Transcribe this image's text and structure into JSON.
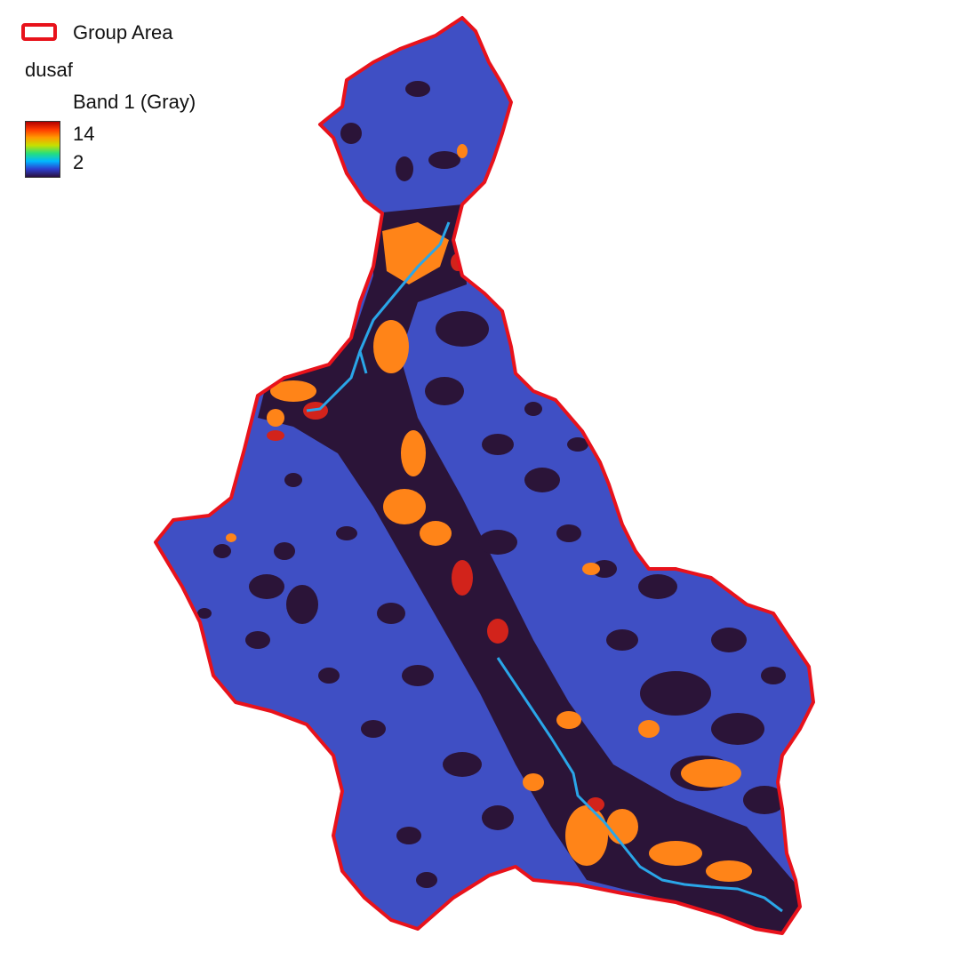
{
  "legend": {
    "group_area_label": "Group Area",
    "layer_name": "dusaf",
    "band_label": "Band 1 (Gray)",
    "ramp_max": "14",
    "ramp_min": "2",
    "outline_color": "#e8121b",
    "ramp_colors": [
      "#b30000",
      "#ff3a00",
      "#ff9a00",
      "#c6e000",
      "#28e07a",
      "#00b8ff",
      "#2d40d0",
      "#2a1040"
    ]
  },
  "map": {
    "boundary_color": "#e8121b",
    "background_class_color": "#3f4fc4",
    "dark_class_color": "#2b1438",
    "orange_class_color": "#ff8418",
    "red_class_color": "#d2231b",
    "river_color": "#2aa6e8"
  }
}
